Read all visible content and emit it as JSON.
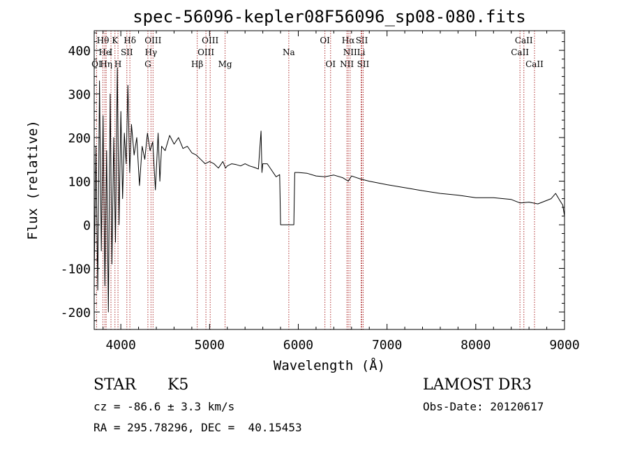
{
  "chart_data": {
    "type": "line",
    "title": "spec-56096-kepler08F56096_sp08-080.fits",
    "xlabel": "Wavelength (Å)",
    "ylabel": "Flux (relative)",
    "xlim": [
      3700,
      9000
    ],
    "ylim": [
      -240,
      445
    ],
    "x_ticks": [
      4000,
      5000,
      6000,
      7000,
      8000,
      9000
    ],
    "y_ticks": [
      -200,
      -100,
      0,
      100,
      200,
      300,
      400
    ],
    "y_tick_labels": [
      "-200",
      "-100",
      "0",
      "100",
      "200",
      "300",
      "400"
    ],
    "x_tick_labels": [
      "4000",
      "5000",
      "6000",
      "7000",
      "8000",
      "9000"
    ],
    "series": [
      {
        "name": "flux",
        "x": [
          3700,
          3720,
          3740,
          3760,
          3780,
          3800,
          3820,
          3840,
          3860,
          3880,
          3900,
          3920,
          3940,
          3960,
          3980,
          4000,
          4020,
          4040,
          4060,
          4080,
          4100,
          4120,
          4150,
          4180,
          4210,
          4240,
          4270,
          4300,
          4330,
          4360,
          4390,
          4420,
          4440,
          4460,
          4500,
          4550,
          4600,
          4650,
          4700,
          4750,
          4800,
          4850,
          4900,
          4950,
          5000,
          5050,
          5100,
          5150,
          5180,
          5200,
          5250,
          5300,
          5350,
          5400,
          5450,
          5500,
          5550,
          5580,
          5590,
          5600,
          5650,
          5700,
          5750,
          5790,
          5800,
          5950,
          5960,
          6000,
          6100,
          6200,
          6300,
          6400,
          6500,
          6563,
          6600,
          6700,
          6800,
          7000,
          7200,
          7400,
          7600,
          7800,
          8000,
          8200,
          8400,
          8500,
          8600,
          8700,
          8800,
          8850,
          8900,
          8950,
          8980,
          9000
        ],
        "y": [
          -120,
          180,
          -150,
          330,
          -60,
          250,
          -140,
          170,
          -200,
          300,
          -90,
          200,
          -40,
          360,
          0,
          260,
          60,
          210,
          140,
          320,
          120,
          230,
          160,
          200,
          90,
          180,
          150,
          210,
          170,
          190,
          80,
          210,
          100,
          180,
          170,
          205,
          185,
          200,
          175,
          180,
          165,
          160,
          150,
          140,
          145,
          140,
          130,
          145,
          130,
          135,
          140,
          138,
          135,
          140,
          135,
          132,
          128,
          215,
          120,
          140,
          140,
          125,
          110,
          115,
          0,
          0,
          120,
          120,
          118,
          112,
          110,
          114,
          108,
          100,
          112,
          105,
          100,
          92,
          85,
          78,
          72,
          68,
          62,
          62,
          58,
          50,
          52,
          48,
          56,
          60,
          72,
          55,
          45,
          20
        ],
        "color": "#000000"
      }
    ],
    "lines": [
      {
        "label": "Hθ",
        "x": 3798,
        "row": 1
      },
      {
        "label": "K",
        "x": 3934,
        "row": 1
      },
      {
        "label": "Hδ",
        "x": 4102,
        "row": 1
      },
      {
        "label": "OIII",
        "x": 4363,
        "row": 1
      },
      {
        "label": "OIII",
        "x": 5007,
        "row": 1
      },
      {
        "label": "OI",
        "x": 6300,
        "row": 1
      },
      {
        "label": "Hα",
        "x": 6563,
        "row": 1
      },
      {
        "label": "SII",
        "x": 6716,
        "row": 1
      },
      {
        "label": "CaII",
        "x": 8542,
        "row": 1
      },
      {
        "label": "He",
        "x": 3820,
        "row": 2
      },
      {
        "label": "I",
        "x": 3889,
        "row": 2
      },
      {
        "label": "SII",
        "x": 4068,
        "row": 2
      },
      {
        "label": "Hγ",
        "x": 4340,
        "row": 2
      },
      {
        "label": "OIII",
        "x": 4959,
        "row": 2
      },
      {
        "label": "Na",
        "x": 5893,
        "row": 2
      },
      {
        "label": "NII",
        "x": 6584,
        "row": 2
      },
      {
        "label": "Li",
        "x": 6708,
        "row": 2
      },
      {
        "label": "CaII",
        "x": 8498,
        "row": 2
      },
      {
        "label": "OI",
        "x": 3727,
        "row": 3
      },
      {
        "label": "Hη",
        "x": 3835,
        "row": 3
      },
      {
        "label": "H",
        "x": 3968,
        "row": 3
      },
      {
        "label": "G",
        "x": 4305,
        "row": 3
      },
      {
        "label": "Hβ",
        "x": 4861,
        "row": 3
      },
      {
        "label": "Mg",
        "x": 5175,
        "row": 3
      },
      {
        "label": "OI",
        "x": 6364,
        "row": 3
      },
      {
        "label": "NII",
        "x": 6548,
        "row": 3
      },
      {
        "label": "SII",
        "x": 6731,
        "row": 3
      },
      {
        "label": "CaII",
        "x": 8662,
        "row": 3
      }
    ]
  },
  "info": {
    "object_type": "STAR",
    "subclass": "K5",
    "survey": "LAMOST DR3",
    "velocity": "cz = -86.6 ± 3.3 km/s",
    "obs_date": "Obs-Date: 20120617",
    "coords": "RA = 295.78296, DEC =  40.15453"
  }
}
